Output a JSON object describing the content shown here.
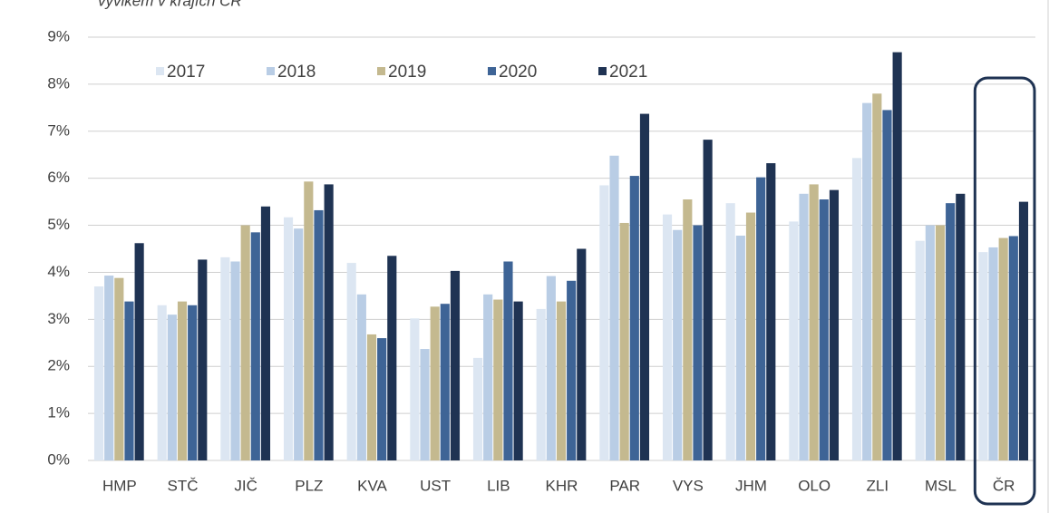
{
  "chart_data": {
    "type": "bar",
    "subtitle": "vývikem v krajích ČR",
    "categories": [
      "HMP",
      "STČ",
      "JIČ",
      "PLZ",
      "KVA",
      "UST",
      "LIB",
      "KHR",
      "PAR",
      "VYS",
      "JHM",
      "OLO",
      "ZLI",
      "MSL",
      "ČR"
    ],
    "series": [
      {
        "name": "2017",
        "color": "#dce6f2",
        "values": [
          3.7,
          3.3,
          4.32,
          5.17,
          4.2,
          3.02,
          2.18,
          3.22,
          5.85,
          5.23,
          5.47,
          5.08,
          6.43,
          4.67,
          4.43
        ]
      },
      {
        "name": "2018",
        "color": "#b9cde5",
        "values": [
          3.93,
          3.1,
          4.23,
          4.93,
          3.53,
          2.37,
          3.53,
          3.92,
          6.48,
          4.9,
          4.78,
          5.67,
          7.6,
          5.0,
          4.53
        ]
      },
      {
        "name": "2019",
        "color": "#c4b98f",
        "values": [
          3.88,
          3.38,
          5.0,
          5.93,
          2.68,
          3.27,
          3.42,
          3.38,
          5.05,
          5.55,
          5.27,
          5.87,
          7.8,
          5.0,
          4.73
        ]
      },
      {
        "name": "2020",
        "color": "#3e6496",
        "values": [
          3.38,
          3.3,
          4.85,
          5.32,
          2.6,
          3.33,
          4.23,
          3.82,
          6.05,
          5.0,
          6.02,
          5.55,
          7.45,
          5.47,
          4.77
        ]
      },
      {
        "name": "2021",
        "color": "#1f3353",
        "values": [
          4.62,
          4.27,
          5.4,
          5.87,
          4.35,
          4.03,
          3.38,
          4.5,
          7.37,
          6.82,
          6.32,
          5.75,
          8.68,
          5.67,
          5.5
        ]
      }
    ],
    "ylim": [
      0,
      9
    ],
    "yticks": [
      {
        "value": 0,
        "label": "0%"
      },
      {
        "value": 1,
        "label": "1%"
      },
      {
        "value": 2,
        "label": "2%"
      },
      {
        "value": 3,
        "label": "3%"
      },
      {
        "value": 4,
        "label": "4%"
      },
      {
        "value": 5,
        "label": "5%"
      },
      {
        "value": 6,
        "label": "6%"
      },
      {
        "value": 7,
        "label": "7%"
      },
      {
        "value": 8,
        "label": "8%"
      },
      {
        "value": 9,
        "label": "9%"
      }
    ],
    "grid": true,
    "legend": "top-left"
  }
}
